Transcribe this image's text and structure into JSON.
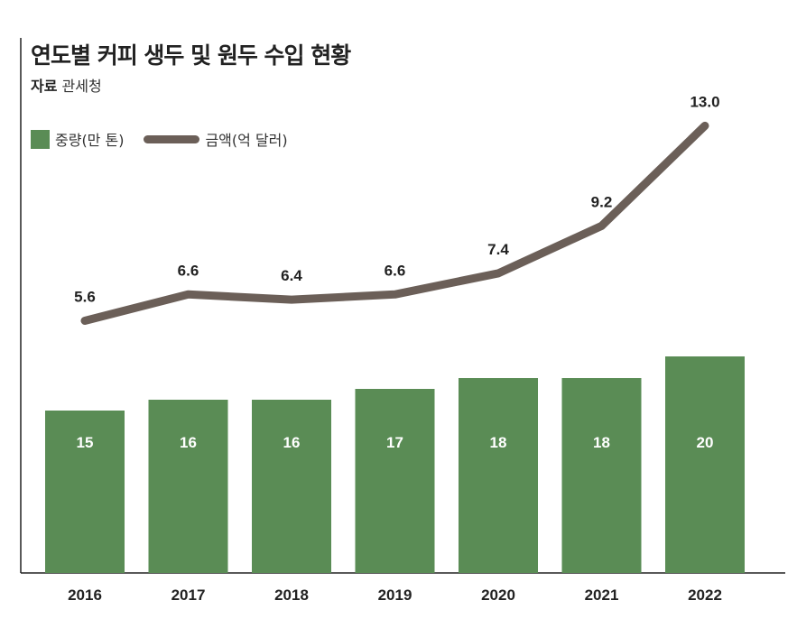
{
  "header": {
    "title": "연도별 커피 생두 및 원두 수입 현황",
    "source_label": "자료",
    "source_value": "관세청"
  },
  "legend": {
    "bar_label": "중량(만 톤)",
    "line_label": "금액(억 달러)"
  },
  "colors": {
    "bar": "#5a8c55",
    "line": "#6b5f58",
    "axis": "#222222"
  },
  "chart_data": {
    "type": "bar+line",
    "title": "연도별 커피 생두 및 원두 수입 현황",
    "categories": [
      "2016",
      "2017",
      "2018",
      "2019",
      "2020",
      "2021",
      "2022"
    ],
    "series": [
      {
        "name": "중량(만 톤)",
        "type": "bar",
        "values": [
          15,
          16,
          16,
          17,
          18,
          18,
          20
        ]
      },
      {
        "name": "금액(억 달러)",
        "type": "line",
        "values": [
          5.6,
          6.6,
          6.4,
          6.6,
          7.4,
          9.2,
          13.0
        ],
        "labels": [
          "5.6",
          "6.6",
          "6.4",
          "6.6",
          "7.4",
          "9.2",
          "13.0"
        ]
      }
    ],
    "legend_position": "top-left",
    "grid": false
  }
}
